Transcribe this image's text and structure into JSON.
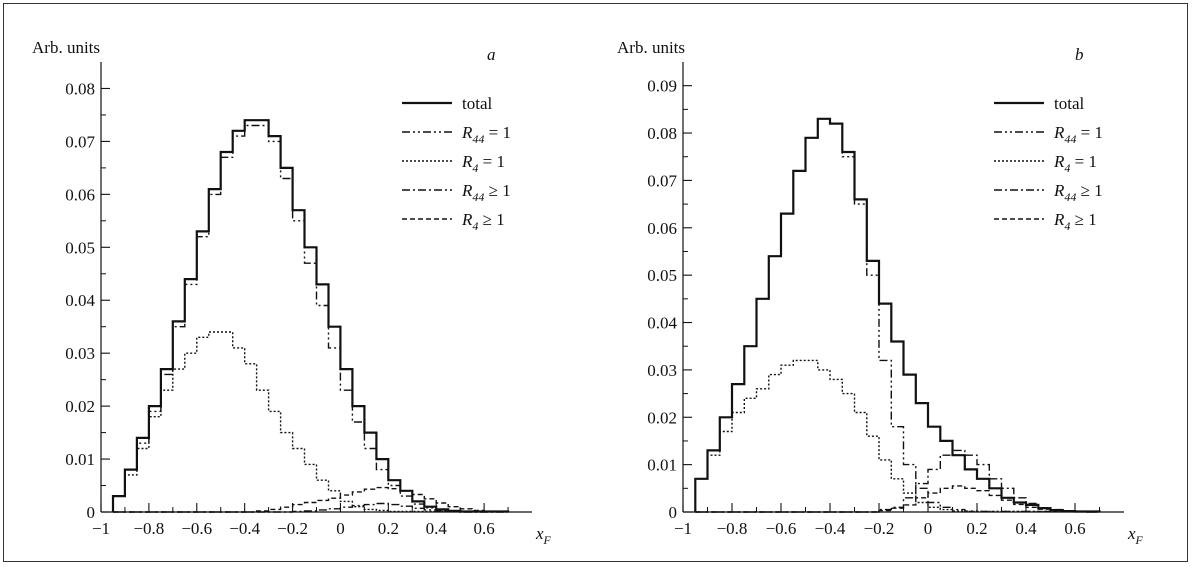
{
  "chart_data": [
    {
      "type": "line",
      "panel_label": "a",
      "ylabel": "Arb. units",
      "xlabel": "x",
      "xlabel_sub": "F",
      "xlim": [
        -1,
        0.8
      ],
      "ylim": [
        0,
        0.085
      ],
      "x_ticks": [
        -1,
        -0.8,
        -0.6,
        -0.4,
        -0.2,
        0,
        0.2,
        0.4,
        0.6
      ],
      "x_tick_labels": [
        "−1",
        "−0.8",
        "−0.6",
        "−0.4",
        "−0.2",
        "0",
        "0.2",
        "0.4",
        "0.6"
      ],
      "y_ticks": [
        0,
        0.01,
        0.02,
        0.03,
        0.04,
        0.05,
        0.06,
        0.07,
        0.08
      ],
      "y_tick_labels": [
        "0",
        "0.01",
        "0.02",
        "0.03",
        "0.04",
        "0.05",
        "0.06",
        "0.07",
        "0.08"
      ],
      "bin_edges": [
        -0.95,
        -0.9,
        -0.85,
        -0.8,
        -0.75,
        -0.7,
        -0.65,
        -0.6,
        -0.55,
        -0.5,
        -0.45,
        -0.4,
        -0.35,
        -0.3,
        -0.25,
        -0.2,
        -0.15,
        -0.1,
        -0.05,
        0,
        0.05,
        0.1,
        0.15,
        0.2,
        0.25,
        0.3,
        0.35,
        0.4,
        0.45,
        0.5,
        0.55,
        0.6,
        0.65,
        0.7
      ],
      "legend": [
        {
          "base": "total",
          "sub": "",
          "rel": "",
          "val": ""
        },
        {
          "base": "R",
          "sub": "44",
          "rel": "=",
          "val": "1"
        },
        {
          "base": "R",
          "sub": "4",
          "rel": "=",
          "val": "1"
        },
        {
          "base": "R",
          "sub": "44",
          "rel": "≥",
          "val": "1"
        },
        {
          "base": "R",
          "sub": "4",
          "rel": "≥",
          "val": "1"
        }
      ],
      "series": [
        {
          "values": [
            0.003,
            0.008,
            0.014,
            0.02,
            0.027,
            0.036,
            0.044,
            0.053,
            0.061,
            0.068,
            0.072,
            0.074,
            0.074,
            0.071,
            0.065,
            0.057,
            0.05,
            0.043,
            0.035,
            0.027,
            0.02,
            0.015,
            0.01,
            0.006,
            0.004,
            0.002,
            0.001,
            0.0005,
            0.0002,
            0.0001,
            0.0001,
            0.0001,
            0.0001
          ]
        },
        {
          "values": [
            0.003,
            0.008,
            0.013,
            0.019,
            0.026,
            0.035,
            0.043,
            0.052,
            0.06,
            0.067,
            0.071,
            0.073,
            0.073,
            0.07,
            0.063,
            0.055,
            0.047,
            0.039,
            0.031,
            0.023,
            0.017,
            0.012,
            0.008,
            0.005,
            0.003,
            0.0015,
            0.0008,
            0.0003,
            0.0001,
            0.0001,
            0.0001,
            0.0001,
            0.0001
          ]
        },
        {
          "values": [
            0.003,
            0.007,
            0.012,
            0.018,
            0.023,
            0.027,
            0.03,
            0.033,
            0.034,
            0.034,
            0.031,
            0.028,
            0.023,
            0.019,
            0.015,
            0.012,
            0.009,
            0.006,
            0.004,
            0.002,
            0.001,
            0.0005,
            0.0003,
            0.0001,
            0.0001,
            0.0001,
            0.0001,
            0.0001,
            0.0001,
            0.0001,
            0.0001,
            0.0001,
            0.0001
          ]
        },
        {
          "values": [
            0,
            0,
            0,
            0,
            0,
            0,
            0,
            0,
            0,
            0,
            0,
            0,
            0,
            0,
            0,
            0.0001,
            0.0002,
            0.0004,
            0.0006,
            0.0009,
            0.0012,
            0.0014,
            0.0016,
            0.0014,
            0.0011,
            0.0007,
            0.0004,
            0.0002,
            0.0001,
            0,
            0,
            0,
            0
          ]
        },
        {
          "values": [
            0,
            0,
            0,
            0,
            0,
            0,
            0,
            0,
            0,
            0,
            0,
            0,
            0.0002,
            0.0005,
            0.0009,
            0.0014,
            0.0018,
            0.0022,
            0.0026,
            0.0032,
            0.0038,
            0.0043,
            0.0046,
            0.0044,
            0.004,
            0.0033,
            0.0025,
            0.0017,
            0.001,
            0.0006,
            0.0003,
            0.0001,
            0.0001
          ]
        }
      ]
    },
    {
      "type": "line",
      "panel_label": "b",
      "ylabel": "Arb. units",
      "xlabel": "x",
      "xlabel_sub": "F",
      "xlim": [
        -1,
        0.8
      ],
      "ylim": [
        0,
        0.095
      ],
      "x_ticks": [
        -1,
        -0.8,
        -0.6,
        -0.4,
        -0.2,
        0,
        0.2,
        0.4,
        0.6
      ],
      "x_tick_labels": [
        "−1",
        "−0.8",
        "−0.6",
        "−0.4",
        "−0.2",
        "0",
        "0.2",
        "0.4",
        "0.6"
      ],
      "y_ticks": [
        0,
        0.01,
        0.02,
        0.03,
        0.04,
        0.05,
        0.06,
        0.07,
        0.08,
        0.09
      ],
      "y_tick_labels": [
        "0",
        "0.01",
        "0.02",
        "0.03",
        "0.04",
        "0.05",
        "0.06",
        "0.07",
        "0.08",
        "0.09"
      ],
      "bin_edges": [
        -0.95,
        -0.9,
        -0.85,
        -0.8,
        -0.75,
        -0.7,
        -0.65,
        -0.6,
        -0.55,
        -0.5,
        -0.45,
        -0.4,
        -0.35,
        -0.3,
        -0.25,
        -0.2,
        -0.15,
        -0.1,
        -0.05,
        0,
        0.05,
        0.1,
        0.15,
        0.2,
        0.25,
        0.3,
        0.35,
        0.4,
        0.45,
        0.5,
        0.55,
        0.6,
        0.65,
        0.7
      ],
      "legend": [
        {
          "base": "total",
          "sub": "",
          "rel": "",
          "val": ""
        },
        {
          "base": "R",
          "sub": "44",
          "rel": "=",
          "val": "1"
        },
        {
          "base": "R",
          "sub": "4",
          "rel": "=",
          "val": "1"
        },
        {
          "base": "R",
          "sub": "44",
          "rel": "≥",
          "val": "1"
        },
        {
          "base": "R",
          "sub": "4",
          "rel": "≥",
          "val": "1"
        }
      ],
      "series": [
        {
          "values": [
            0.007,
            0.013,
            0.02,
            0.027,
            0.035,
            0.045,
            0.054,
            0.063,
            0.072,
            0.079,
            0.083,
            0.082,
            0.076,
            0.066,
            0.053,
            0.044,
            0.036,
            0.029,
            0.023,
            0.018,
            0.015,
            0.012,
            0.009,
            0.007,
            0.005,
            0.003,
            0.002,
            0.0015,
            0.0008,
            0.0004,
            0.0002,
            0.0001,
            0.0001
          ]
        },
        {
          "values": [
            0.007,
            0.013,
            0.02,
            0.027,
            0.035,
            0.045,
            0.054,
            0.063,
            0.072,
            0.079,
            0.083,
            0.082,
            0.075,
            0.065,
            0.05,
            0.032,
            0.018,
            0.01,
            0.005,
            0.002,
            0.001,
            0.0005,
            0.0002,
            0.0001,
            0.0001,
            0.0001,
            0.0001,
            0.0001,
            0.0001,
            0.0001,
            0.0001,
            0.0001,
            0.0001
          ]
        },
        {
          "values": [
            0.007,
            0.012,
            0.017,
            0.021,
            0.024,
            0.026,
            0.029,
            0.031,
            0.032,
            0.032,
            0.03,
            0.028,
            0.025,
            0.021,
            0.016,
            0.011,
            0.007,
            0.004,
            0.002,
            0.001,
            0.0005,
            0.0002,
            0.0001,
            0.0001,
            0.0001,
            0.0001,
            0.0001,
            0.0001,
            0.0001,
            0.0001,
            0.0001,
            0.0001,
            0.0001
          ]
        },
        {
          "values": [
            0,
            0,
            0,
            0,
            0,
            0,
            0,
            0,
            0,
            0,
            0,
            0,
            0,
            0,
            0,
            0.0005,
            0.001,
            0.003,
            0.006,
            0.009,
            0.012,
            0.013,
            0.012,
            0.01,
            0.007,
            0.005,
            0.003,
            0.0018,
            0.0009,
            0.0005,
            0.0002,
            0.0001,
            0
          ]
        },
        {
          "values": [
            0,
            0,
            0,
            0,
            0,
            0,
            0,
            0,
            0,
            0,
            0,
            0,
            0,
            0,
            0,
            0.0003,
            0.0008,
            0.0015,
            0.003,
            0.004,
            0.005,
            0.0055,
            0.005,
            0.0045,
            0.0035,
            0.0025,
            0.0016,
            0.001,
            0.0006,
            0.0003,
            0.0002,
            0.0001,
            0
          ]
        }
      ]
    }
  ]
}
